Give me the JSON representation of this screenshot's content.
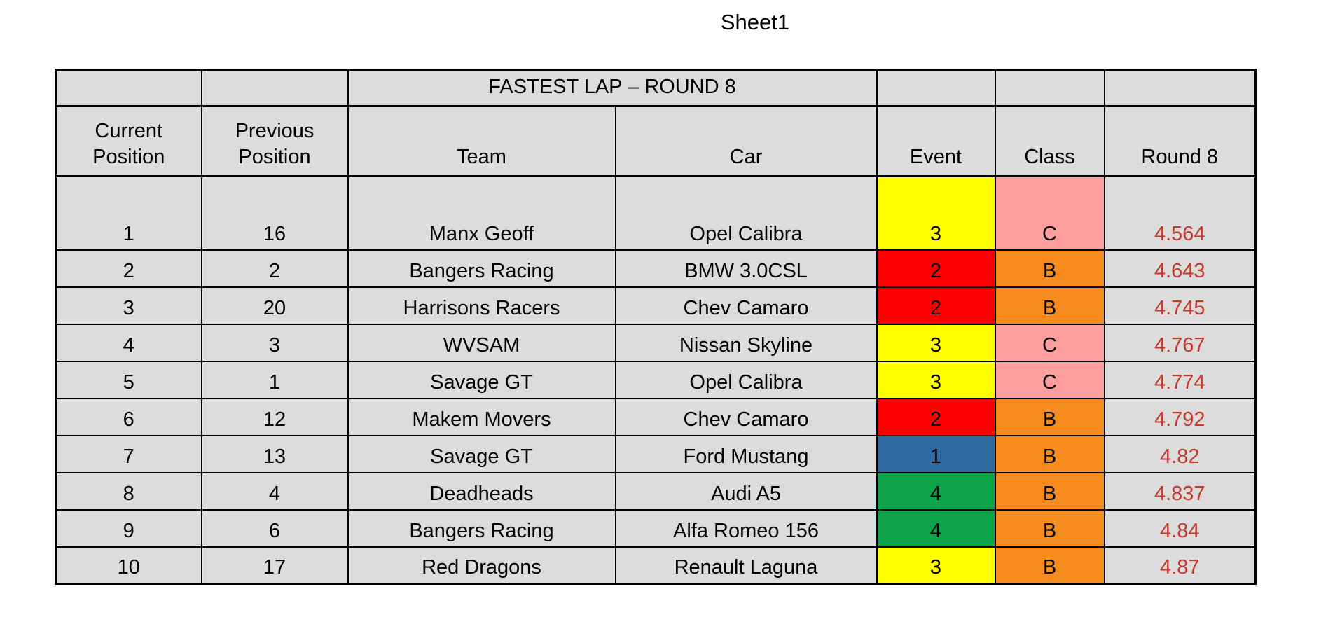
{
  "page": {
    "sheet_title": "Sheet1"
  },
  "table": {
    "banner_title": "FASTEST LAP – ROUND 8",
    "headers": {
      "current": "Current\nPosition",
      "previous": "Previous\nPosition",
      "team": "Team",
      "car": "Car",
      "event": "Event",
      "class": "Class",
      "round8": "Round 8"
    },
    "colors": {
      "cell_background": "#dcdcdc",
      "event_yellow": "#ffff00",
      "event_red": "#ff0000",
      "event_blue": "#2f6aa0",
      "event_green": "#0ca44a",
      "class_pink": "#ff9e9e",
      "class_orange": "#f78c1e",
      "round8_text": "#c4392d",
      "border": "#000000"
    },
    "rows": [
      {
        "current": "1",
        "previous": "16",
        "team": "Manx Geoff",
        "car": "Opel Calibra",
        "event": "3",
        "event_color": "#ffff00",
        "class": "C",
        "class_color": "#ff9e9e",
        "round8": "4.564"
      },
      {
        "current": "2",
        "previous": "2",
        "team": "Bangers Racing",
        "car": "BMW 3.0CSL",
        "event": "2",
        "event_color": "#ff0000",
        "class": "B",
        "class_color": "#f78c1e",
        "round8": "4.643"
      },
      {
        "current": "3",
        "previous": "20",
        "team": "Harrisons Racers",
        "car": "Chev Camaro",
        "event": "2",
        "event_color": "#ff0000",
        "class": "B",
        "class_color": "#f78c1e",
        "round8": "4.745"
      },
      {
        "current": "4",
        "previous": "3",
        "team": "WVSAM",
        "car": "Nissan Skyline",
        "event": "3",
        "event_color": "#ffff00",
        "class": "C",
        "class_color": "#ff9e9e",
        "round8": "4.767"
      },
      {
        "current": "5",
        "previous": "1",
        "team": "Savage GT",
        "car": "Opel Calibra",
        "event": "3",
        "event_color": "#ffff00",
        "class": "C",
        "class_color": "#ff9e9e",
        "round8": "4.774"
      },
      {
        "current": "6",
        "previous": "12",
        "team": "Makem Movers",
        "car": "Chev Camaro",
        "event": "2",
        "event_color": "#ff0000",
        "class": "B",
        "class_color": "#f78c1e",
        "round8": "4.792"
      },
      {
        "current": "7",
        "previous": "13",
        "team": "Savage GT",
        "car": "Ford Mustang",
        "event": "1",
        "event_color": "#2f6aa0",
        "class": "B",
        "class_color": "#f78c1e",
        "round8": "4.82"
      },
      {
        "current": "8",
        "previous": "4",
        "team": "Deadheads",
        "car": "Audi A5",
        "event": "4",
        "event_color": "#0ca44a",
        "class": "B",
        "class_color": "#f78c1e",
        "round8": "4.837"
      },
      {
        "current": "9",
        "previous": "6",
        "team": "Bangers Racing",
        "car": "Alfa Romeo 156",
        "event": "4",
        "event_color": "#0ca44a",
        "class": "B",
        "class_color": "#f78c1e",
        "round8": "4.84"
      },
      {
        "current": "10",
        "previous": "17",
        "team": "Red Dragons",
        "car": "Renault Laguna",
        "event": "3",
        "event_color": "#ffff00",
        "class": "B",
        "class_color": "#f78c1e",
        "round8": "4.87"
      }
    ]
  }
}
